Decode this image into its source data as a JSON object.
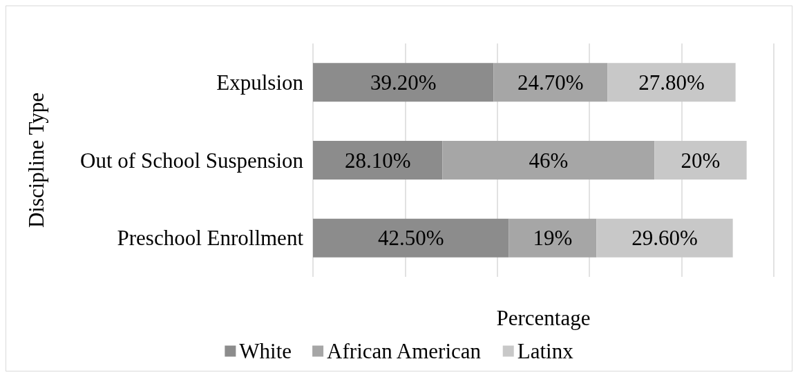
{
  "chart_data": {
    "type": "bar",
    "orientation": "horizontal",
    "stacked": true,
    "xlabel": "Percentage",
    "ylabel": "Discipline Type",
    "categories": [
      "Expulsion",
      "Out of School Suspension",
      "Preschool Enrollment"
    ],
    "series": [
      {
        "name": "White",
        "color": "#8c8c8c",
        "values": [
          39.2,
          28.1,
          42.5
        ],
        "value_labels": [
          "39.20%",
          "28.10%",
          "42.50%"
        ]
      },
      {
        "name": "African American",
        "color": "#a6a6a6",
        "values": [
          24.7,
          46,
          19
        ],
        "value_labels": [
          "24.70%",
          "46%",
          "19%"
        ]
      },
      {
        "name": "Latinx",
        "color": "#c8c8c8",
        "values": [
          27.8,
          20,
          29.6
        ],
        "value_labels": [
          "27.80%",
          "20%",
          "29.60%"
        ]
      }
    ],
    "xlim": [
      0,
      100
    ],
    "xticks": [
      {
        "value": 0,
        "label": null
      },
      {
        "value": 20,
        "label": null
      },
      {
        "value": 40,
        "label": null
      },
      {
        "value": 60,
        "label": null
      },
      {
        "value": 80,
        "label": null
      },
      {
        "value": 100,
        "label": null
      }
    ],
    "tick_labels": "y",
    "grid": "x",
    "legend": "bottom"
  }
}
